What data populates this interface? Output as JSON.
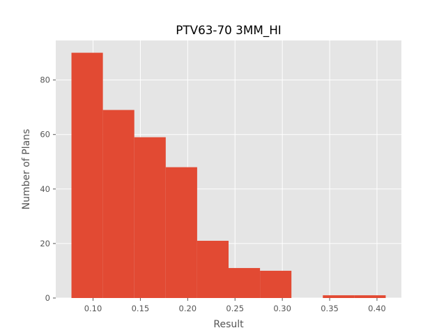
{
  "chart_data": {
    "type": "bar",
    "title": "PTV63-70 3MM_HI",
    "xlabel": "Result",
    "ylabel": "Number of Plans",
    "bins": [
      {
        "x0": 0.0772,
        "x1": 0.1104,
        "count": 90
      },
      {
        "x0": 0.1104,
        "x1": 0.1436,
        "count": 69
      },
      {
        "x0": 0.1436,
        "x1": 0.1768,
        "count": 59
      },
      {
        "x0": 0.1768,
        "x1": 0.21,
        "count": 48
      },
      {
        "x0": 0.21,
        "x1": 0.2432,
        "count": 21
      },
      {
        "x0": 0.2432,
        "x1": 0.2764,
        "count": 11
      },
      {
        "x0": 0.2764,
        "x1": 0.3096,
        "count": 10
      },
      {
        "x0": 0.3096,
        "x1": 0.3428,
        "count": 0
      },
      {
        "x0": 0.3428,
        "x1": 0.376,
        "count": 1
      },
      {
        "x0": 0.376,
        "x1": 0.4092,
        "count": 1
      }
    ],
    "xlim": [
      0.0606,
      0.4258
    ],
    "ylim": [
      0,
      94.5
    ],
    "xticks": [
      0.1,
      0.15,
      0.2,
      0.25,
      0.3,
      0.35,
      0.4
    ],
    "xtick_labels": [
      "0.10",
      "0.15",
      "0.20",
      "0.25",
      "0.30",
      "0.35",
      "0.40"
    ],
    "yticks": [
      0,
      20,
      40,
      60,
      80
    ],
    "ytick_labels": [
      "0",
      "20",
      "40",
      "60",
      "80"
    ],
    "grid": true,
    "style": {
      "bar_color": "#E24A33",
      "plot_background": "#E5E5E5",
      "grid_color": "#FFFFFF",
      "tick_color": "#555555"
    }
  }
}
